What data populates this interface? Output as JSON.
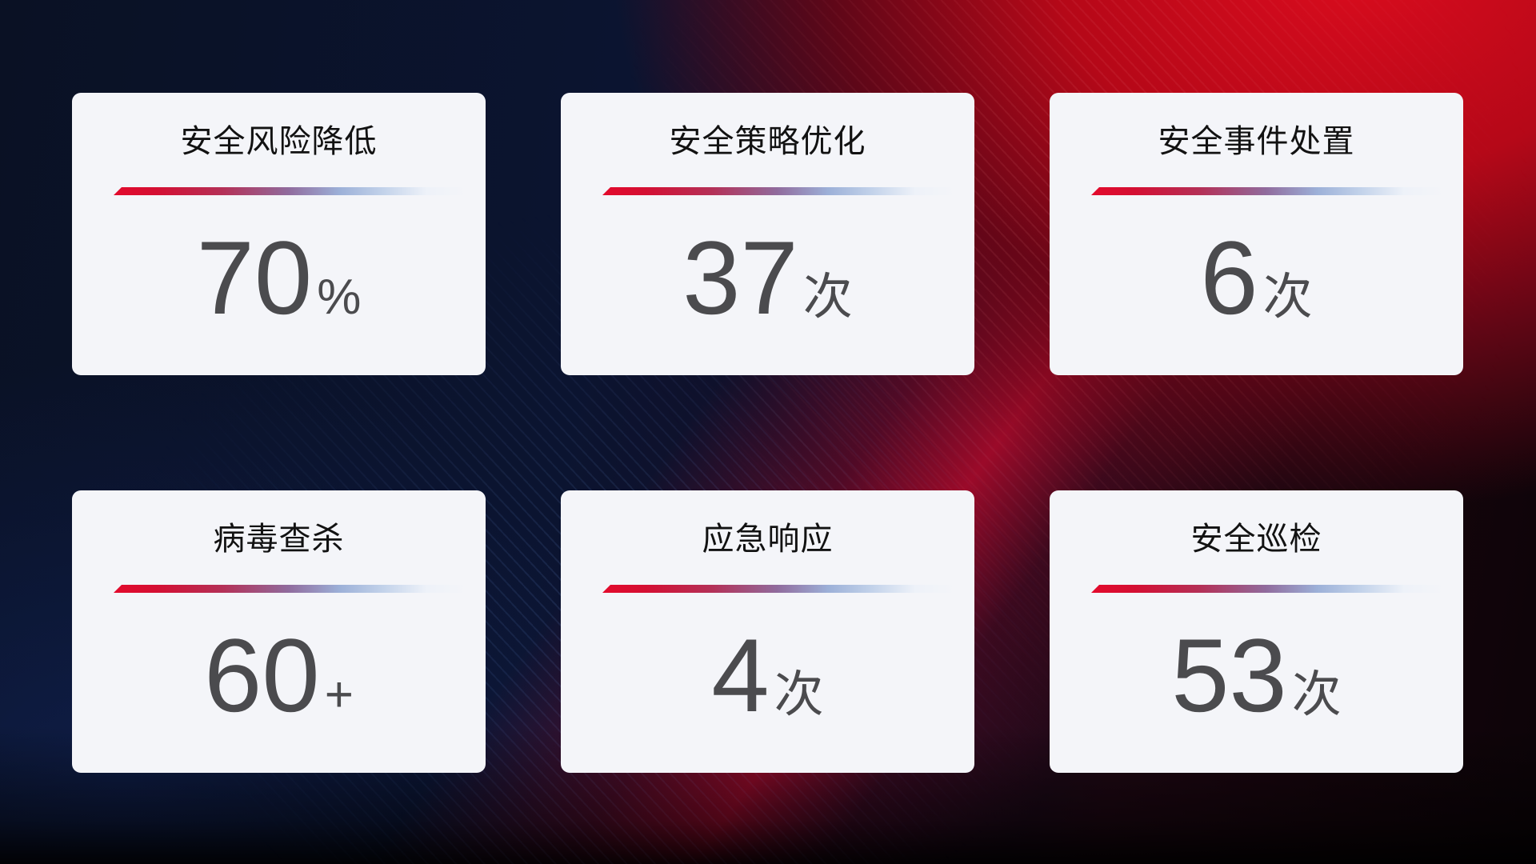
{
  "cards": [
    {
      "title": "安全风险降低",
      "value": "70",
      "unit": "%"
    },
    {
      "title": "安全策略优化",
      "value": "37",
      "unit": "次"
    },
    {
      "title": "安全事件处置",
      "value": "6",
      "unit": "次"
    },
    {
      "title": "病毒查杀",
      "value": "60",
      "unit": "+"
    },
    {
      "title": "应急响应",
      "value": "4",
      "unit": "次"
    },
    {
      "title": "安全巡检",
      "value": "53",
      "unit": "次"
    }
  ],
  "colors": {
    "card_background": "#f4f5f9",
    "title_text": "#121212",
    "value_text": "#4b4b4e",
    "divider_red": "#e30a2c",
    "divider_purple": "#906b9d",
    "divider_blue": "#9cb0d8",
    "background_navy": "#0b1430",
    "background_red": "#c00a1c"
  }
}
